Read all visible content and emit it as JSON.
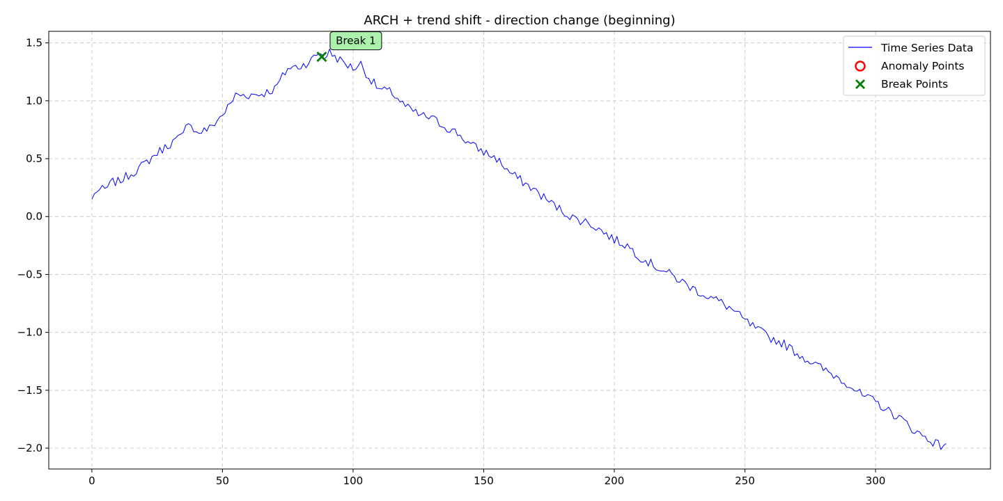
{
  "chart_data": {
    "type": "line",
    "title": "ARCH + trend shift - direction change (beginning)",
    "xlabel": "",
    "ylabel": "",
    "xlim": [
      -16.5,
      344
    ],
    "ylim": [
      -2.18,
      1.6
    ],
    "xticks": [
      0,
      50,
      100,
      150,
      200,
      250,
      300
    ],
    "xtick_labels": [
      "0",
      "50",
      "100",
      "150",
      "200",
      "250",
      "300"
    ],
    "yticks": [
      1.5,
      1.0,
      0.5,
      0.0,
      -0.5,
      -1.0,
      -1.5,
      -2.0
    ],
    "ytick_labels": [
      "1.5",
      "1.0",
      "0.5",
      "0.0",
      "−0.5",
      "−1.0",
      "−1.5",
      "−2.0"
    ],
    "grid": true,
    "legend_position": "top-right",
    "series": [
      {
        "name": "Time Series Data",
        "color": "#0000ff",
        "anchors": [
          [
            0,
            0.15
          ],
          [
            2,
            0.23
          ],
          [
            5,
            0.23
          ],
          [
            8,
            0.3
          ],
          [
            10,
            0.3
          ],
          [
            15,
            0.37
          ],
          [
            20,
            0.45
          ],
          [
            25,
            0.55
          ],
          [
            30,
            0.63
          ],
          [
            35,
            0.7
          ],
          [
            37,
            0.84
          ],
          [
            40,
            0.72
          ],
          [
            45,
            0.76
          ],
          [
            50,
            0.88
          ],
          [
            53,
            0.97
          ],
          [
            55,
            1.05
          ],
          [
            60,
            1.05
          ],
          [
            65,
            1.06
          ],
          [
            70,
            1.1
          ],
          [
            75,
            1.28
          ],
          [
            80,
            1.3
          ],
          [
            84,
            1.35
          ],
          [
            87,
            1.42
          ],
          [
            89,
            1.38
          ],
          [
            91,
            1.42
          ],
          [
            95,
            1.35
          ],
          [
            100,
            1.28
          ],
          [
            103,
            1.32
          ],
          [
            106,
            1.2
          ],
          [
            110,
            1.1
          ],
          [
            115,
            1.07
          ],
          [
            120,
            0.95
          ],
          [
            125,
            0.88
          ],
          [
            130,
            0.85
          ],
          [
            135,
            0.78
          ],
          [
            140,
            0.72
          ],
          [
            145,
            0.62
          ],
          [
            150,
            0.56
          ],
          [
            155,
            0.5
          ],
          [
            160,
            0.38
          ],
          [
            165,
            0.3
          ],
          [
            170,
            0.22
          ],
          [
            175,
            0.13
          ],
          [
            180,
            0.05
          ],
          [
            185,
            -0.02
          ],
          [
            190,
            -0.05
          ],
          [
            195,
            -0.12
          ],
          [
            200,
            -0.2
          ],
          [
            205,
            -0.25
          ],
          [
            210,
            -0.35
          ],
          [
            215,
            -0.42
          ],
          [
            220,
            -0.48
          ],
          [
            225,
            -0.55
          ],
          [
            230,
            -0.62
          ],
          [
            235,
            -0.68
          ],
          [
            240,
            -0.73
          ],
          [
            245,
            -0.8
          ],
          [
            250,
            -0.9
          ],
          [
            255,
            -0.98
          ],
          [
            260,
            -1.05
          ],
          [
            265,
            -1.1
          ],
          [
            270,
            -1.18
          ],
          [
            275,
            -1.25
          ],
          [
            280,
            -1.32
          ],
          [
            285,
            -1.38
          ],
          [
            290,
            -1.45
          ],
          [
            295,
            -1.55
          ],
          [
            300,
            -1.6
          ],
          [
            305,
            -1.68
          ],
          [
            310,
            -1.75
          ],
          [
            315,
            -1.85
          ],
          [
            320,
            -1.92
          ],
          [
            325,
            -1.98
          ],
          [
            327,
            -1.96
          ]
        ],
        "noise_amplitude": 0.04,
        "noise_seed": 7,
        "length": 328
      }
    ],
    "anomaly_points": {
      "name": "Anomaly Points",
      "color": "#ff0000",
      "points": []
    },
    "break_points": {
      "name": "Break Points",
      "color": "#008000",
      "points": [
        {
          "x": 88,
          "y": 1.38,
          "label": "Break 1"
        }
      ]
    },
    "legend": [
      "Time Series Data",
      "Anomaly Points",
      "Break Points"
    ]
  }
}
